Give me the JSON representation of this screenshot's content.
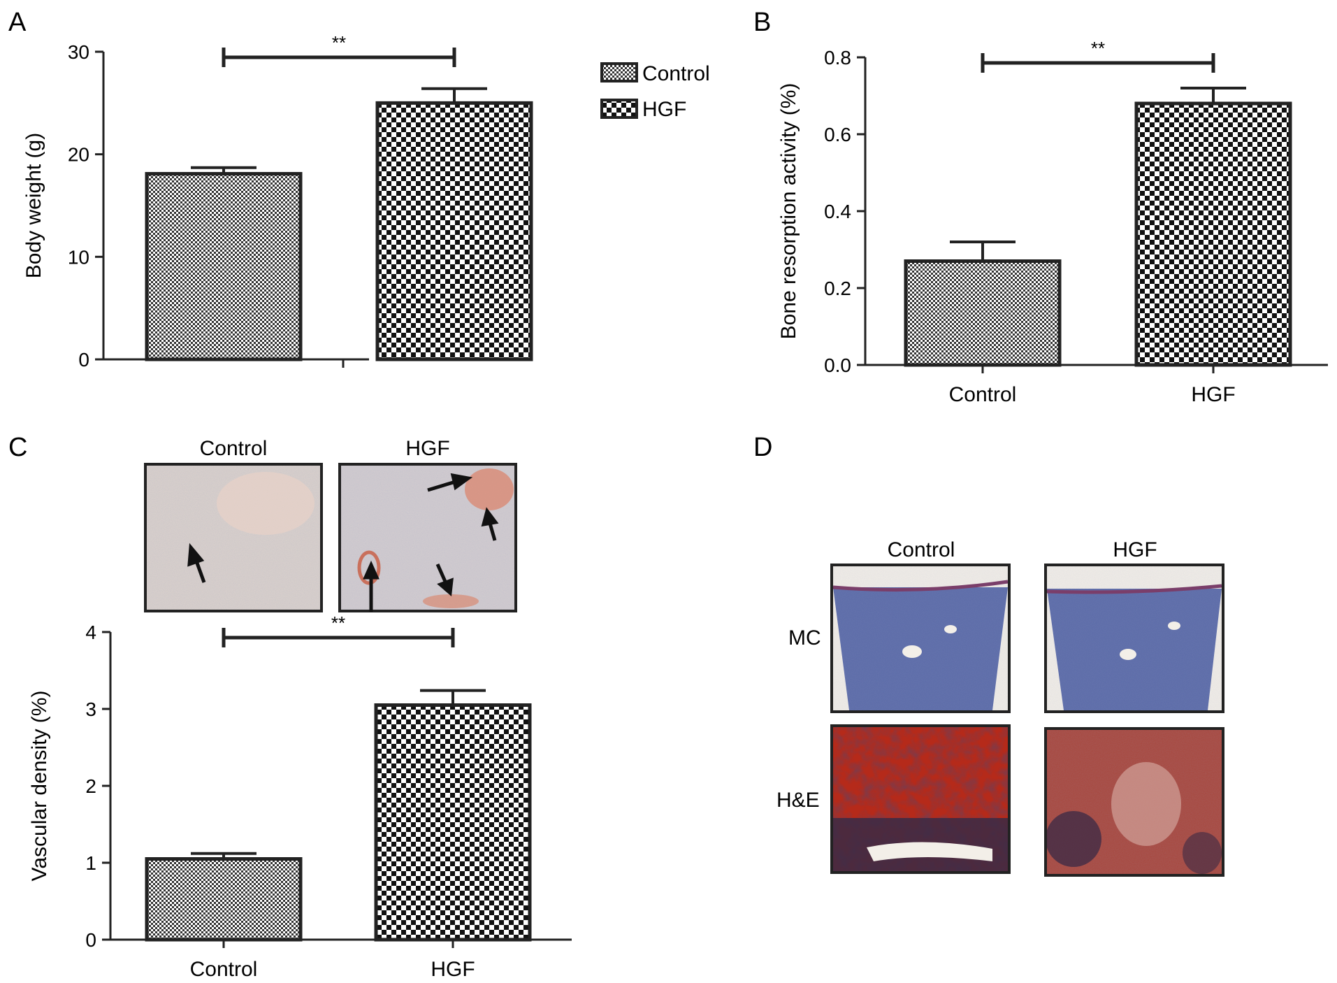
{
  "panels": {
    "a": {
      "label": "A"
    },
    "b": {
      "label": "B"
    },
    "c": {
      "label": "C",
      "image_titles": [
        "Control",
        "HGF"
      ]
    },
    "d": {
      "label": "D",
      "column_titles": [
        "Control",
        "HGF"
      ],
      "row_labels": [
        "MC",
        "H&E"
      ]
    }
  },
  "legend": {
    "items": [
      "Control",
      "HGF"
    ],
    "placement": "top-right of panel A"
  },
  "colors": {
    "ink": "#222222",
    "stain_blue": "#5a6aa8",
    "stain_red": "#b52a1a",
    "ihc_pink": "#d98a74"
  },
  "chart_data": [
    {
      "id": "A",
      "type": "bar",
      "categories": [
        "Control",
        "HGF"
      ],
      "show_category_labels": false,
      "values": [
        18.1,
        25.0
      ],
      "errors": [
        0.6,
        1.4
      ],
      "ylabel": "Body weight (g)",
      "xlabel": "",
      "ylim": [
        0,
        30
      ],
      "yticks": [
        "0",
        "10",
        "20",
        "30"
      ],
      "significance": "**",
      "grid": false
    },
    {
      "id": "B",
      "type": "bar",
      "categories": [
        "Control",
        "HGF"
      ],
      "show_category_labels": true,
      "values": [
        0.27,
        0.68
      ],
      "errors": [
        0.05,
        0.04
      ],
      "ylabel": "Bone resorption activity (%)",
      "xlabel": "",
      "ylim": [
        0,
        0.8
      ],
      "yticks": [
        "0.0",
        "0.2",
        "0.4",
        "0.6",
        "0.8"
      ],
      "significance": "**",
      "grid": false
    },
    {
      "id": "C",
      "type": "bar",
      "categories": [
        "Control",
        "HGF"
      ],
      "show_category_labels": true,
      "values": [
        1.05,
        3.05
      ],
      "errors": [
        0.07,
        0.19
      ],
      "ylabel": "Vascular density (%)",
      "xlabel": "",
      "ylim": [
        0,
        4
      ],
      "yticks": [
        "0",
        "1",
        "2",
        "3",
        "4"
      ],
      "significance": "**",
      "grid": false
    }
  ]
}
